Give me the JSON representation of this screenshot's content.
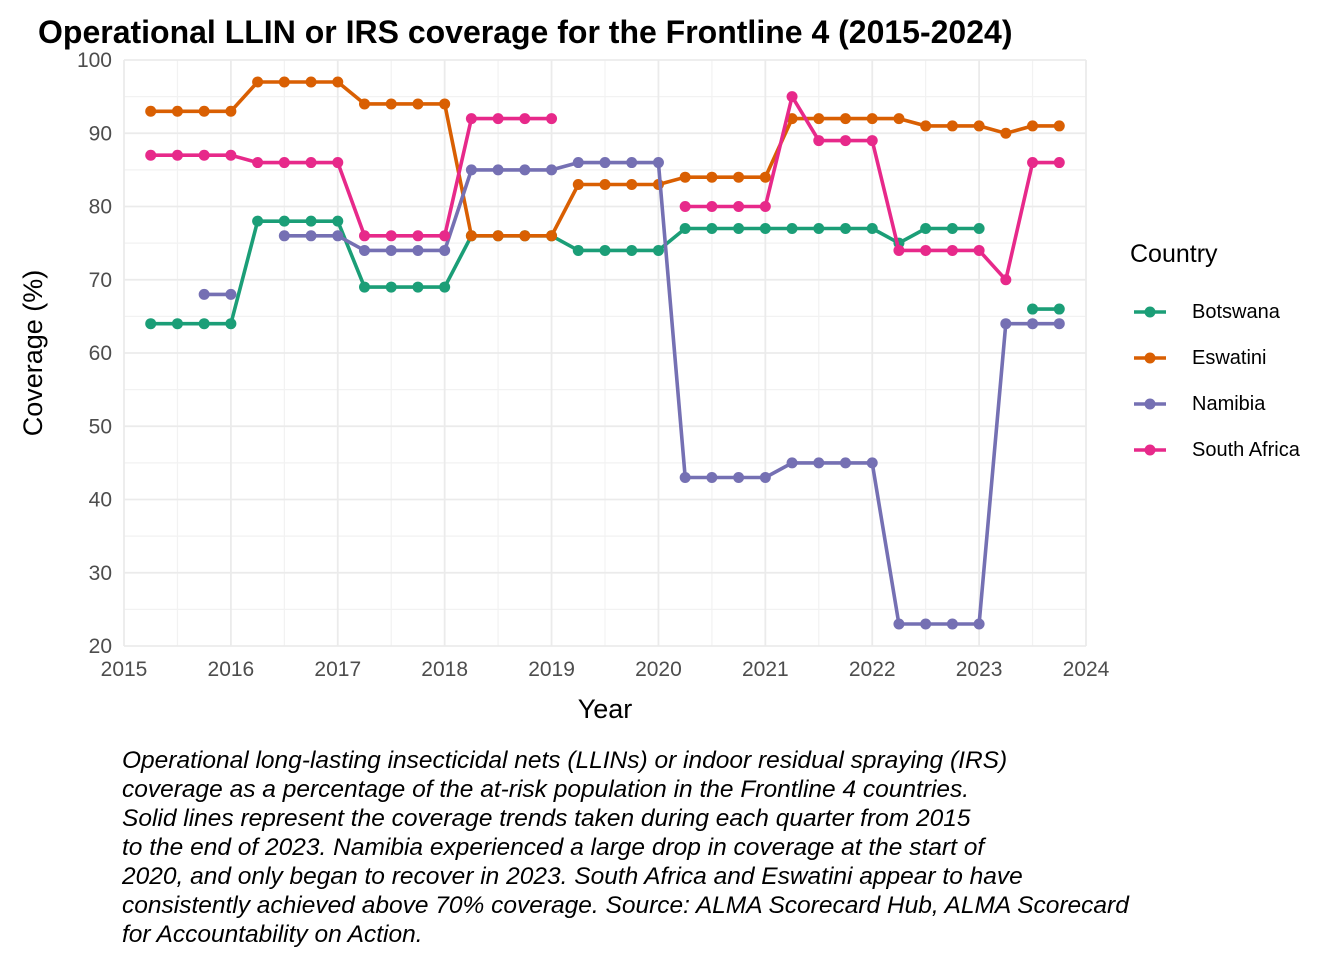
{
  "chart_data": {
    "type": "line",
    "title": "Operational LLIN or IRS coverage for the Frontline 4 (2015-2024)",
    "xlabel": "Year",
    "ylabel": "Coverage (%)",
    "xlim": [
      2015,
      2024
    ],
    "ylim": [
      20,
      100
    ],
    "x_ticks": [
      "2015",
      "2016",
      "2017",
      "2018",
      "2019",
      "2020",
      "2021",
      "2022",
      "2023",
      "2024"
    ],
    "y_ticks": [
      "20",
      "30",
      "40",
      "50",
      "60",
      "70",
      "80",
      "90",
      "100"
    ],
    "grid": true,
    "legend": {
      "title": "Country",
      "position": "right"
    },
    "series": [
      {
        "name": "Botswana",
        "color": "#1b9e77",
        "points": [
          [
            2015.25,
            64
          ],
          [
            2015.5,
            64
          ],
          [
            2015.75,
            64
          ],
          [
            2016.0,
            64
          ],
          [
            2016.25,
            78
          ],
          [
            2016.5,
            78
          ],
          [
            2016.75,
            78
          ],
          [
            2017.0,
            78
          ],
          [
            2017.25,
            69
          ],
          [
            2017.5,
            69
          ],
          [
            2017.75,
            69
          ],
          [
            2018.0,
            69
          ],
          [
            2018.25,
            76
          ],
          [
            2018.5,
            76
          ],
          [
            2018.75,
            76
          ],
          [
            2019.0,
            76
          ],
          [
            2019.25,
            74
          ],
          [
            2019.5,
            74
          ],
          [
            2019.75,
            74
          ],
          [
            2020.0,
            74
          ],
          [
            2020.25,
            77
          ],
          [
            2020.5,
            77
          ],
          [
            2020.75,
            77
          ],
          [
            2021.0,
            77
          ],
          [
            2021.25,
            77
          ],
          [
            2021.5,
            77
          ],
          [
            2021.75,
            77
          ],
          [
            2022.0,
            77
          ],
          [
            2022.25,
            75
          ],
          [
            2022.5,
            77
          ],
          [
            2022.75,
            77
          ],
          [
            2023.0,
            77
          ],
          null,
          [
            2023.5,
            66
          ],
          [
            2023.75,
            66
          ]
        ]
      },
      {
        "name": "Eswatini",
        "color": "#d95f02",
        "points": [
          [
            2015.25,
            93
          ],
          [
            2015.5,
            93
          ],
          [
            2015.75,
            93
          ],
          [
            2016.0,
            93
          ],
          [
            2016.25,
            97
          ],
          [
            2016.5,
            97
          ],
          [
            2016.75,
            97
          ],
          [
            2017.0,
            97
          ],
          [
            2017.25,
            94
          ],
          [
            2017.5,
            94
          ],
          [
            2017.75,
            94
          ],
          [
            2018.0,
            94
          ],
          [
            2018.25,
            76
          ],
          [
            2018.5,
            76
          ],
          [
            2018.75,
            76
          ],
          [
            2019.0,
            76
          ],
          [
            2019.25,
            83
          ],
          [
            2019.5,
            83
          ],
          [
            2019.75,
            83
          ],
          [
            2020.0,
            83
          ],
          [
            2020.25,
            84
          ],
          [
            2020.5,
            84
          ],
          [
            2020.75,
            84
          ],
          [
            2021.0,
            84
          ],
          [
            2021.25,
            92
          ],
          [
            2021.5,
            92
          ],
          [
            2021.75,
            92
          ],
          [
            2022.0,
            92
          ],
          [
            2022.25,
            92
          ],
          [
            2022.5,
            91
          ],
          [
            2022.75,
            91
          ],
          [
            2023.0,
            91
          ],
          [
            2023.25,
            90
          ],
          [
            2023.5,
            91
          ],
          [
            2023.75,
            91
          ]
        ]
      },
      {
        "name": "Namibia",
        "color": "#7570b3",
        "points": [
          [
            2015.75,
            68
          ],
          [
            2016.0,
            68
          ],
          null,
          [
            2016.5,
            76
          ],
          [
            2016.75,
            76
          ],
          [
            2017.0,
            76
          ],
          [
            2017.25,
            74
          ],
          [
            2017.5,
            74
          ],
          [
            2017.75,
            74
          ],
          [
            2018.0,
            74
          ],
          [
            2018.25,
            85
          ],
          [
            2018.5,
            85
          ],
          [
            2018.75,
            85
          ],
          [
            2019.0,
            85
          ],
          [
            2019.25,
            86
          ],
          [
            2019.5,
            86
          ],
          [
            2019.75,
            86
          ],
          [
            2020.0,
            86
          ],
          [
            2020.25,
            43
          ],
          [
            2020.5,
            43
          ],
          [
            2020.75,
            43
          ],
          [
            2021.0,
            43
          ],
          [
            2021.25,
            45
          ],
          [
            2021.5,
            45
          ],
          [
            2021.75,
            45
          ],
          [
            2022.0,
            45
          ],
          [
            2022.25,
            23
          ],
          [
            2022.5,
            23
          ],
          [
            2022.75,
            23
          ],
          [
            2023.0,
            23
          ],
          [
            2023.25,
            64
          ],
          [
            2023.5,
            64
          ],
          [
            2023.75,
            64
          ]
        ]
      },
      {
        "name": "South Africa",
        "color": "#e7298a",
        "points": [
          [
            2015.25,
            87
          ],
          [
            2015.5,
            87
          ],
          [
            2015.75,
            87
          ],
          [
            2016.0,
            87
          ],
          [
            2016.25,
            86
          ],
          [
            2016.5,
            86
          ],
          [
            2016.75,
            86
          ],
          [
            2017.0,
            86
          ],
          [
            2017.25,
            76
          ],
          [
            2017.5,
            76
          ],
          [
            2017.75,
            76
          ],
          [
            2018.0,
            76
          ],
          [
            2018.25,
            92
          ],
          [
            2018.5,
            92
          ],
          [
            2018.75,
            92
          ],
          [
            2019.0,
            92
          ],
          null,
          [
            2020.25,
            80
          ],
          [
            2020.5,
            80
          ],
          [
            2020.75,
            80
          ],
          [
            2021.0,
            80
          ],
          [
            2021.25,
            95
          ],
          [
            2021.5,
            89
          ],
          [
            2021.75,
            89
          ],
          [
            2022.0,
            89
          ],
          [
            2022.25,
            74
          ],
          [
            2022.5,
            74
          ],
          [
            2022.75,
            74
          ],
          [
            2023.0,
            74
          ],
          [
            2023.25,
            70
          ],
          [
            2023.5,
            86
          ],
          [
            2023.75,
            86
          ]
        ]
      }
    ],
    "caption": "Operational long-lasting insecticidal nets (LLINs) or indoor residual spraying (IRS)\ncoverage as a percentage of the at-risk population in the Frontline 4 countries.\nSolid lines represent the coverage trends taken during each quarter from 2015\nto the end of 2023. Namibia experienced a large drop in coverage at the start of\n2020, and only began to recover in 2023. South Africa and Eswatini appear to have\nconsistently achieved above 70% coverage. Source: ALMA Scorecard Hub, ALMA Scorecard\nfor Accountability on Action."
  }
}
